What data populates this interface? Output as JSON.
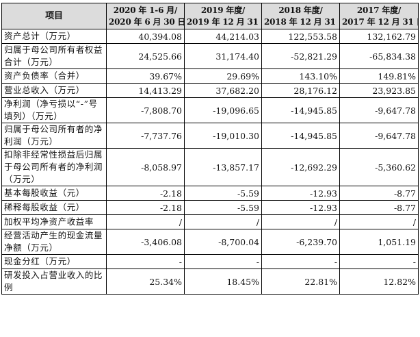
{
  "table": {
    "headers": [
      {
        "line1": "项目",
        "line2": ""
      },
      {
        "line1": "2020 年 1-6 月/",
        "line2": "2020 年 6 月 30 日"
      },
      {
        "line1": "2019 年度/",
        "line2": "2019 年 12 月 31 日"
      },
      {
        "line1": "2018 年度/",
        "line2": "2018 年 12 月 31 日"
      },
      {
        "line1": "2017 年度/",
        "line2": "2017 年 12 月 31 日"
      }
    ],
    "rows": [
      {
        "label": "资产总计（万元）",
        "values": [
          "40,394.08",
          "44,214.03",
          "122,553.58",
          "132,162.79"
        ]
      },
      {
        "label": "归属于母公司所有者权益合计（万元）",
        "values": [
          "24,525.66",
          "31,174.40",
          "-52,821.29",
          "-65,834.38"
        ]
      },
      {
        "label": "资产负债率（合并）",
        "values": [
          "39.67%",
          "29.69%",
          "143.10%",
          "149.81%"
        ]
      },
      {
        "label": "营业总收入（万元）",
        "values": [
          "14,413.29",
          "37,682.20",
          "28,176.12",
          "23,923.85"
        ]
      },
      {
        "label": "净利润（净亏损以“-”号填列）（万元）",
        "values": [
          "-7,808.70",
          "-19,096.65",
          "-14,945.85",
          "-9,647.78"
        ]
      },
      {
        "label": "归属于母公司所有者的净利润（万元）",
        "values": [
          "-7,737.76",
          "-19,010.30",
          "-14,945.85",
          "-9,647.78"
        ]
      },
      {
        "label": "扣除非经常性损益后归属于母公司所有者的净利润（万元）",
        "values": [
          "-8,058.97",
          "-13,857.17",
          "-12,692.29",
          "-5,360.62"
        ]
      },
      {
        "label": "基本每股收益（元）",
        "values": [
          "-2.18",
          "-5.59",
          "-12.93",
          "-8.77"
        ]
      },
      {
        "label": "稀释每股收益（元）",
        "values": [
          "-2.18",
          "-5.59",
          "-12.93",
          "-8.77"
        ]
      },
      {
        "label": "加权平均净资产收益率",
        "values": [
          "/",
          "/",
          "/",
          "/"
        ]
      },
      {
        "label": "经营活动产生的现金流量净额（万元）",
        "values": [
          "-3,406.08",
          "-8,700.04",
          "-6,239.70",
          "1,051.19"
        ]
      },
      {
        "label": "现金分红（万元）",
        "values": [
          "-",
          "-",
          "-",
          "-"
        ]
      },
      {
        "label": "研发投入占营业收入的比例",
        "values": [
          "25.34%",
          "18.45%",
          "22.81%",
          "12.82%"
        ]
      }
    ]
  }
}
